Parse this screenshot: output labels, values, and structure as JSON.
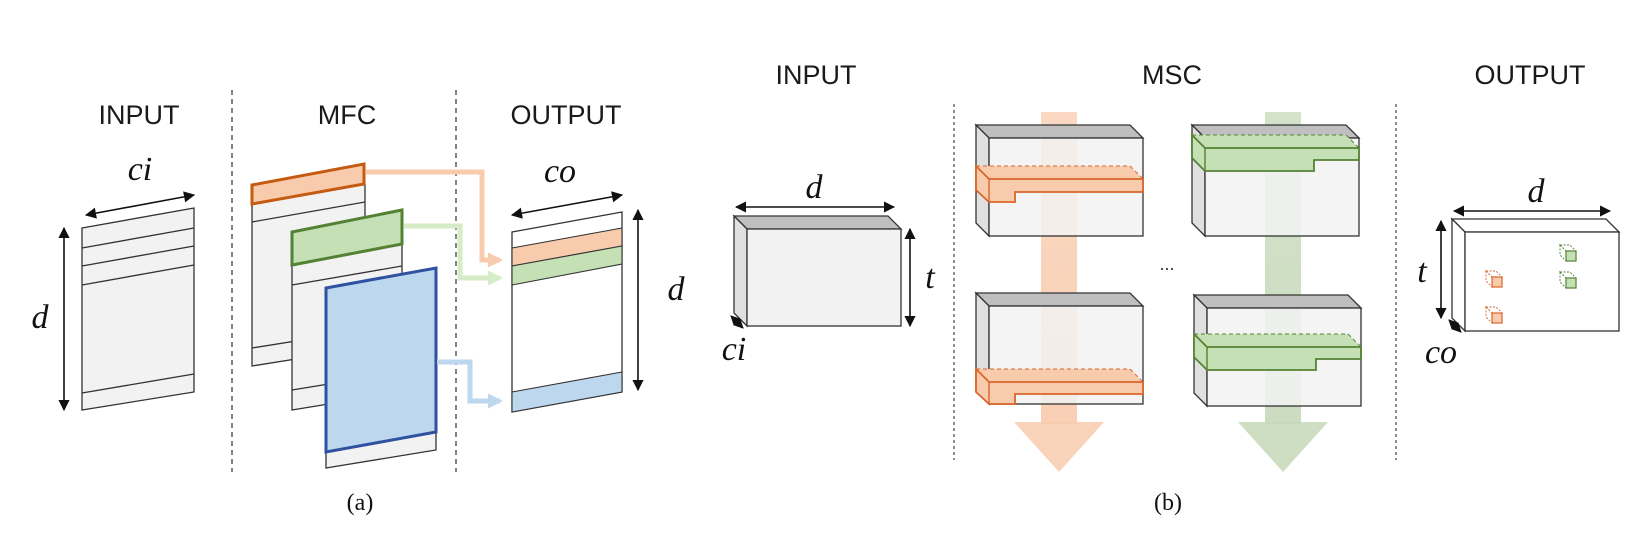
{
  "panel_a": {
    "input_label": "INPUT",
    "mfc_label": "MFC",
    "output_label": "OUTPUT",
    "ci_label": "ci",
    "co_label": "co",
    "d_input_label": "d",
    "d_output_label": "d",
    "caption": "(a)"
  },
  "panel_b": {
    "input_label": "INPUT",
    "msc_label": "MSC",
    "output_label": "OUTPUT",
    "d_input_label": "d",
    "t_input_label": "t",
    "ci_label": "ci",
    "d_output_label": "d",
    "t_output_label": "t",
    "co_label": "co",
    "ellipsis": "...",
    "caption": "(b)"
  },
  "colors": {
    "orange": "#d9652a",
    "orange_fill": "#f8cbad",
    "green": "#548235",
    "green_fill": "#c5e0b4",
    "blue": "#2f52a0",
    "blue_fill": "#bdd7ee",
    "sheet_fill": "#f2f2f2",
    "top_face": "#bfbfbf"
  }
}
